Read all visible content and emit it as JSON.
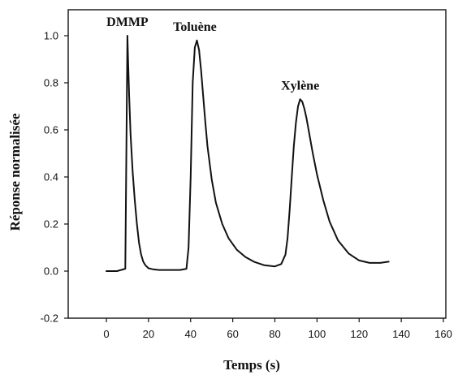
{
  "chart_data": {
    "type": "line",
    "xlabel": "Temps (s)",
    "ylabel": "Réponse normalisée",
    "xlim": [
      -15,
      160
    ],
    "ylim": [
      -0.2,
      1.1
    ],
    "xticks": [
      0,
      20,
      40,
      60,
      80,
      100,
      120,
      140,
      160
    ],
    "yticks": [
      -0.2,
      0.0,
      0.2,
      0.4,
      0.6,
      0.8,
      1.0
    ],
    "ytick_labels": [
      "-0.2",
      "0.0",
      "0.2",
      "0.4",
      "0.6",
      "0.8",
      "1.0"
    ],
    "grid": false,
    "line_color": "#111111",
    "series": [
      {
        "x": [
          0,
          5,
          9,
          9.5,
          10,
          10.3,
          10.8,
          11.5,
          12.5,
          13.5,
          14.5,
          15.5,
          16.5,
          17.5,
          18.5,
          20,
          22,
          25,
          30,
          35,
          38,
          39,
          40,
          41,
          42,
          43,
          44,
          45,
          46,
          47,
          48,
          50,
          52,
          55,
          58,
          62,
          66,
          70,
          75,
          80,
          83,
          85,
          86,
          87,
          88,
          89,
          90,
          91,
          92,
          93,
          94,
          95,
          96,
          98,
          100,
          103,
          106,
          110,
          115,
          120,
          125,
          130,
          134
        ],
        "values": [
          0.0,
          0.0,
          0.01,
          0.5,
          1.0,
          0.9,
          0.75,
          0.58,
          0.42,
          0.3,
          0.2,
          0.12,
          0.07,
          0.04,
          0.025,
          0.012,
          0.008,
          0.005,
          0.005,
          0.005,
          0.01,
          0.1,
          0.4,
          0.8,
          0.95,
          0.98,
          0.94,
          0.85,
          0.74,
          0.63,
          0.53,
          0.39,
          0.29,
          0.2,
          0.14,
          0.09,
          0.06,
          0.04,
          0.025,
          0.02,
          0.03,
          0.07,
          0.14,
          0.26,
          0.4,
          0.53,
          0.63,
          0.7,
          0.73,
          0.72,
          0.69,
          0.65,
          0.6,
          0.5,
          0.41,
          0.3,
          0.21,
          0.13,
          0.075,
          0.045,
          0.035,
          0.035,
          0.04
        ]
      }
    ],
    "annotations": [
      {
        "text": "DMMP",
        "x": 10,
        "y": 1.0
      },
      {
        "text": "Toluène",
        "x": 42,
        "y": 0.98
      },
      {
        "text": "Xylène",
        "x": 92,
        "y": 0.73
      }
    ]
  }
}
